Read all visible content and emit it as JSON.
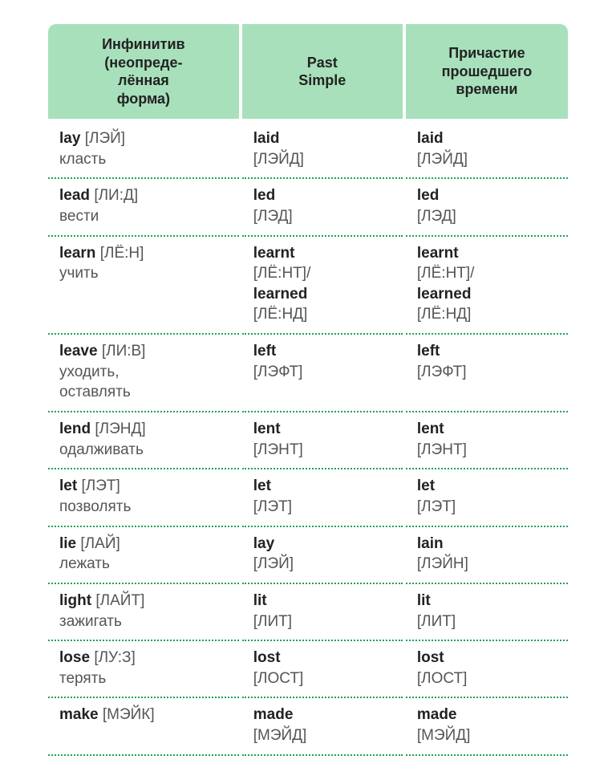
{
  "type": "table",
  "columns": [
    "Инфинитив\n(неопреде-\nлённая\nформа)",
    "Past\nSimple",
    "Причастие\nпрошедшего\nвремени"
  ],
  "colors": {
    "header_bg": "#a8e0bb",
    "text": "#222222",
    "subtext": "#555555",
    "dotted_border": "#1fa05a",
    "background": "#ffffff"
  },
  "column_widths_pct": [
    37,
    31.5,
    31.5
  ],
  "fonts": {
    "header_pt": 18,
    "cell_pt": 19,
    "bold_items": "en words"
  },
  "rows": [
    {
      "inf": {
        "en": "lay",
        "tr": "[ЛЭЙ]",
        "ru": "класть"
      },
      "past": {
        "en": "laid",
        "tr": "[ЛЭЙД]"
      },
      "pp": {
        "en": "laid",
        "tr": "[ЛЭЙД]"
      }
    },
    {
      "inf": {
        "en": "lead",
        "tr": "[ЛИ:Д]",
        "ru": "вести"
      },
      "past": {
        "en": "led",
        "tr": "[ЛЭД]"
      },
      "pp": {
        "en": "led",
        "tr": "[ЛЭД]"
      }
    },
    {
      "inf": {
        "en": "learn",
        "tr": "[ЛЁ:Н]",
        "ru": "учить"
      },
      "past": {
        "en": "learnt",
        "tr": "[ЛЁ:НТ]/",
        "en2": "learned",
        "tr2": "[ЛЁ:НД]"
      },
      "pp": {
        "en": "learnt",
        "tr": "[ЛЁ:НТ]/",
        "en2": "learned",
        "tr2": "[ЛЁ:НД]"
      }
    },
    {
      "inf": {
        "en": "leave",
        "tr": "[ЛИ:В]",
        "ru": "уходить,\nоставлять"
      },
      "past": {
        "en": "left",
        "tr": "[ЛЭФТ]"
      },
      "pp": {
        "en": "left",
        "tr": "[ЛЭФТ]"
      }
    },
    {
      "inf": {
        "en": "lend",
        "tr": "[ЛЭНД]",
        "ru": "одалживать"
      },
      "past": {
        "en": "lent",
        "tr": "[ЛЭНТ]"
      },
      "pp": {
        "en": "lent",
        "tr": "[ЛЭНТ]"
      }
    },
    {
      "inf": {
        "en": "let",
        "tr": "[ЛЭТ]",
        "ru": "позволять"
      },
      "past": {
        "en": "let",
        "tr": "[ЛЭТ]"
      },
      "pp": {
        "en": "let",
        "tr": "[ЛЭТ]"
      }
    },
    {
      "inf": {
        "en": "lie",
        "tr": "[ЛАЙ]",
        "ru": "лежать"
      },
      "past": {
        "en": "lay",
        "tr": "[ЛЭЙ]"
      },
      "pp": {
        "en": "lain",
        "tr": "[ЛЭЙН]"
      }
    },
    {
      "inf": {
        "en": "light",
        "tr": "[ЛАЙТ]",
        "ru": "зажигать"
      },
      "past": {
        "en": "lit",
        "tr": "[ЛИТ]"
      },
      "pp": {
        "en": "lit",
        "tr": "[ЛИТ]"
      }
    },
    {
      "inf": {
        "en": "lose",
        "tr": "[ЛУ:З]",
        "ru": "терять"
      },
      "past": {
        "en": "lost",
        "tr": "[ЛОСТ]"
      },
      "pp": {
        "en": "lost",
        "tr": "[ЛОСТ]"
      }
    },
    {
      "inf": {
        "en": "make",
        "tr": "[МЭЙК]",
        "ru": ""
      },
      "past": {
        "en": "made",
        "tr": "[МЭЙД]"
      },
      "pp": {
        "en": "made",
        "tr": "[МЭЙД]"
      }
    }
  ]
}
